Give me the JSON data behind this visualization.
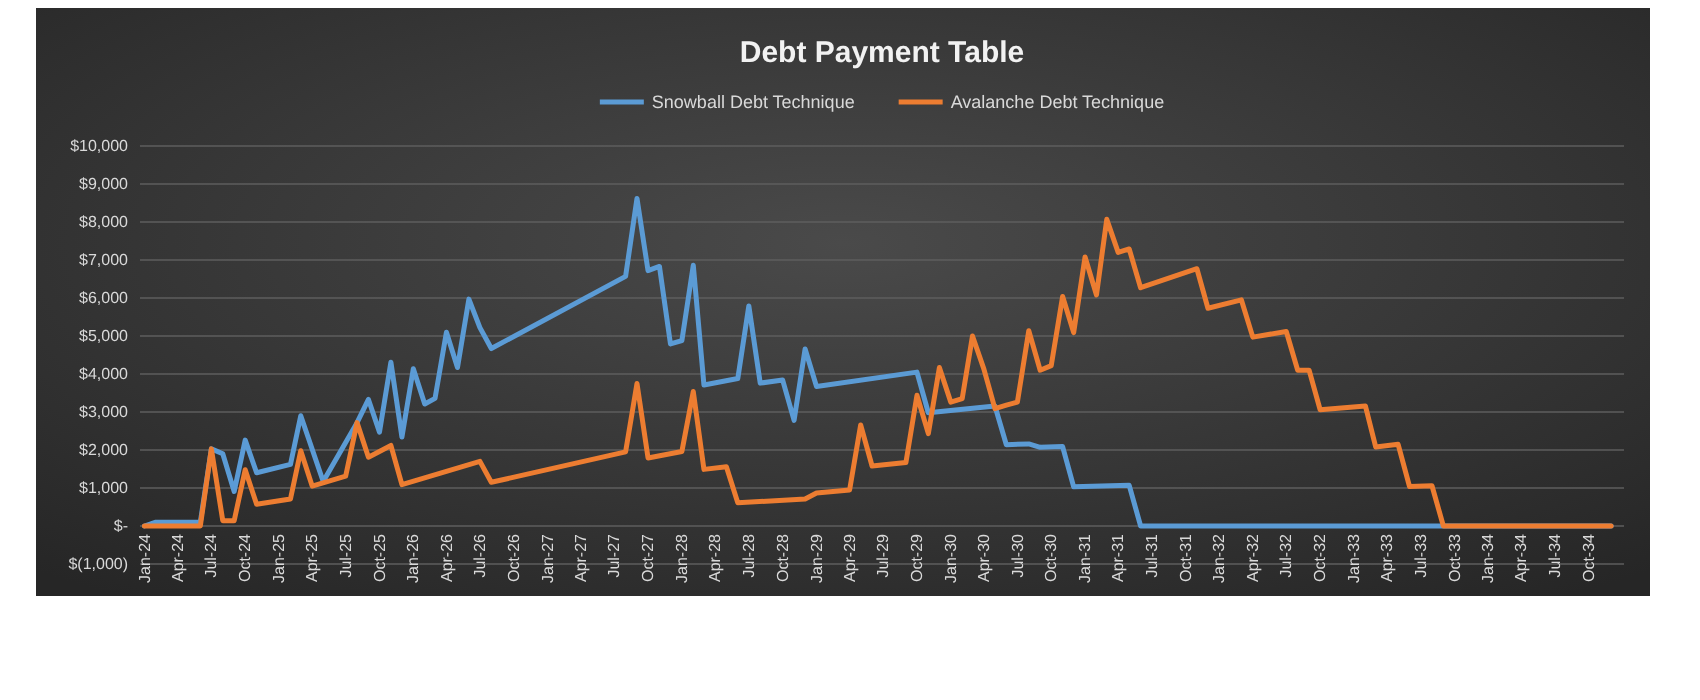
{
  "chart_data": {
    "type": "line",
    "title": "Debt Payment Table",
    "legend": "top",
    "grid": "y",
    "xlim": [
      "2023-12-20",
      "2035-01-05"
    ],
    "ylim": [
      -1000,
      10000
    ],
    "yticks": [
      {
        "value": -1000,
        "label": "$(1,000)"
      },
      {
        "value": 0,
        "label": "$-"
      },
      {
        "value": 1000,
        "label": "$1,000"
      },
      {
        "value": 2000,
        "label": "$2,000"
      },
      {
        "value": 3000,
        "label": "$3,000"
      },
      {
        "value": 4000,
        "label": "$4,000"
      },
      {
        "value": 5000,
        "label": "$5,000"
      },
      {
        "value": 6000,
        "label": "$6,000"
      },
      {
        "value": 7000,
        "label": "$7,000"
      },
      {
        "value": 8000,
        "label": "$8,000"
      },
      {
        "value": 9000,
        "label": "$9,000"
      },
      {
        "value": 10000,
        "label": "$10,000"
      }
    ],
    "xticks": [
      {
        "value": "2024-01",
        "label": "Jan-24"
      },
      {
        "value": "2024-04",
        "label": "Apr-24"
      },
      {
        "value": "2024-07",
        "label": "Jul-24"
      },
      {
        "value": "2024-10",
        "label": "Oct-24"
      },
      {
        "value": "2025-01",
        "label": "Jan-25"
      },
      {
        "value": "2025-04",
        "label": "Apr-25"
      },
      {
        "value": "2025-07",
        "label": "Jul-25"
      },
      {
        "value": "2025-10",
        "label": "Oct-25"
      },
      {
        "value": "2026-01",
        "label": "Jan-26"
      },
      {
        "value": "2026-04",
        "label": "Apr-26"
      },
      {
        "value": "2026-07",
        "label": "Jul-26"
      },
      {
        "value": "2026-10",
        "label": "Oct-26"
      },
      {
        "value": "2027-01",
        "label": "Jan-27"
      },
      {
        "value": "2027-04",
        "label": "Apr-27"
      },
      {
        "value": "2027-07",
        "label": "Jul-27"
      },
      {
        "value": "2027-10",
        "label": "Oct-27"
      },
      {
        "value": "2028-01",
        "label": "Jan-28"
      },
      {
        "value": "2028-04",
        "label": "Apr-28"
      },
      {
        "value": "2028-07",
        "label": "Jul-28"
      },
      {
        "value": "2028-10",
        "label": "Oct-28"
      },
      {
        "value": "2029-01",
        "label": "Jan-29"
      },
      {
        "value": "2029-04",
        "label": "Apr-29"
      },
      {
        "value": "2029-07",
        "label": "Jul-29"
      },
      {
        "value": "2029-10",
        "label": "Oct-29"
      },
      {
        "value": "2030-01",
        "label": "Jan-30"
      },
      {
        "value": "2030-04",
        "label": "Apr-30"
      },
      {
        "value": "2030-07",
        "label": "Jul-30"
      },
      {
        "value": "2030-10",
        "label": "Oct-30"
      },
      {
        "value": "2031-01",
        "label": "Jan-31"
      },
      {
        "value": "2031-04",
        "label": "Apr-31"
      },
      {
        "value": "2031-07",
        "label": "Jul-31"
      },
      {
        "value": "2031-10",
        "label": "Oct-31"
      },
      {
        "value": "2032-01",
        "label": "Jan-32"
      },
      {
        "value": "2032-04",
        "label": "Apr-32"
      },
      {
        "value": "2032-07",
        "label": "Jul-32"
      },
      {
        "value": "2032-10",
        "label": "Oct-32"
      },
      {
        "value": "2033-01",
        "label": "Jan-33"
      },
      {
        "value": "2033-04",
        "label": "Apr-33"
      },
      {
        "value": "2033-07",
        "label": "Jul-33"
      },
      {
        "value": "2033-10",
        "label": "Oct-33"
      },
      {
        "value": "2034-01",
        "label": "Jan-34"
      },
      {
        "value": "2034-04",
        "label": "Apr-34"
      },
      {
        "value": "2034-07",
        "label": "Jul-34"
      },
      {
        "value": "2034-10",
        "label": "Oct-34"
      }
    ],
    "series": [
      {
        "name": "Snowball Debt Technique",
        "color": "#5b9bd5",
        "x": [
          "2024-01",
          "2024-02",
          "2024-06",
          "2024-07",
          "2024-08",
          "2024-09",
          "2024-10",
          "2024-11",
          "2025-02",
          "2025-03",
          "2025-05",
          "2025-08",
          "2025-09",
          "2025-10",
          "2025-11",
          "2025-12",
          "2026-01",
          "2026-02",
          "2026-03",
          "2026-04",
          "2026-05",
          "2026-06",
          "2026-07",
          "2026-08",
          "2027-08",
          "2027-09",
          "2027-10",
          "2027-11",
          "2027-12",
          "2028-01",
          "2028-02",
          "2028-03",
          "2028-06",
          "2028-07",
          "2028-08",
          "2028-10",
          "2028-11",
          "2028-12",
          "2029-01",
          "2029-10",
          "2029-11",
          "2030-05",
          "2030-06",
          "2030-08",
          "2030-09",
          "2030-11",
          "2030-12",
          "2031-05",
          "2031-06",
          "2034-12"
        ],
        "values": [
          0,
          100,
          100,
          2030,
          1900,
          910,
          2260,
          1400,
          1620,
          2900,
          1170,
          2720,
          3330,
          2470,
          4310,
          2340,
          4140,
          3210,
          3360,
          5100,
          4170,
          5970,
          5220,
          4670,
          6570,
          8620,
          6720,
          6830,
          4790,
          4880,
          6860,
          3710,
          3880,
          5790,
          3760,
          3840,
          2780,
          4660,
          3670,
          4050,
          2980,
          3160,
          2140,
          2160,
          2070,
          2090,
          1030,
          1070,
          0,
          0
        ]
      },
      {
        "name": "Avalanche Debt Technique",
        "color": "#ed7d31",
        "x": [
          "2024-01",
          "2024-06",
          "2024-07",
          "2024-08",
          "2024-09",
          "2024-10",
          "2024-11",
          "2025-02",
          "2025-03",
          "2025-04",
          "2025-07",
          "2025-08",
          "2025-09",
          "2025-11",
          "2025-12",
          "2026-07",
          "2026-08",
          "2027-08",
          "2027-09",
          "2027-10",
          "2028-01",
          "2028-02",
          "2028-03",
          "2028-05",
          "2028-06",
          "2028-12",
          "2029-01",
          "2029-04",
          "2029-05",
          "2029-06",
          "2029-09",
          "2029-10",
          "2029-11",
          "2029-12",
          "2030-01",
          "2030-02",
          "2030-03",
          "2030-04",
          "2030-05",
          "2030-06",
          "2030-07",
          "2030-08",
          "2030-09",
          "2030-10",
          "2030-11",
          "2030-12",
          "2031-01",
          "2031-02",
          "2031-03",
          "2031-04",
          "2031-05",
          "2031-06",
          "2031-11",
          "2031-12",
          "2032-03",
          "2032-04",
          "2032-07",
          "2032-08",
          "2032-09",
          "2032-10",
          "2033-02",
          "2033-03",
          "2033-05",
          "2033-06",
          "2033-08",
          "2033-09",
          "2034-12"
        ],
        "values": [
          0,
          0,
          2030,
          140,
          140,
          1480,
          570,
          710,
          1980,
          1050,
          1310,
          2720,
          1810,
          2120,
          1090,
          1700,
          1150,
          1950,
          3750,
          1790,
          1960,
          3540,
          1490,
          1560,
          610,
          710,
          870,
          950,
          2660,
          1580,
          1670,
          3440,
          2430,
          4170,
          3260,
          3350,
          5000,
          4130,
          3090,
          3180,
          3260,
          5140,
          4100,
          4220,
          6040,
          5090,
          7080,
          6080,
          8070,
          7200,
          7290,
          6270,
          6770,
          5730,
          5950,
          4970,
          5120,
          4100,
          4100,
          3060,
          3160,
          2080,
          2150,
          1040,
          1060,
          0,
          0
        ]
      }
    ]
  }
}
